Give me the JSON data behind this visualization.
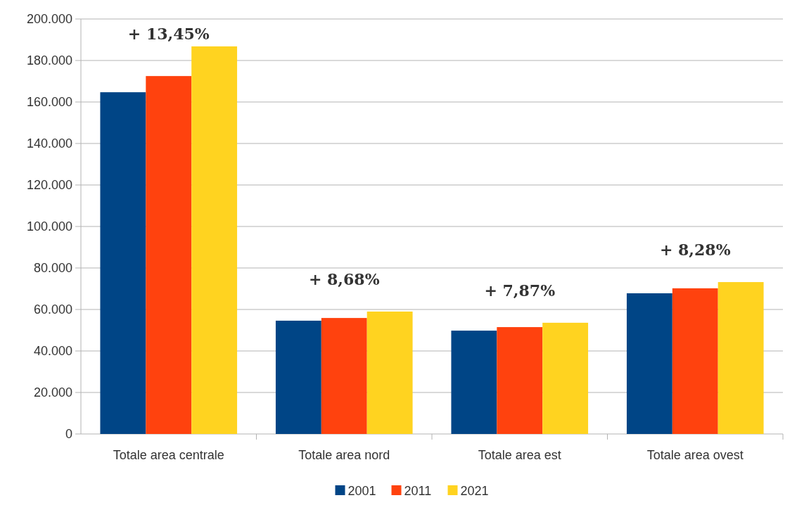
{
  "chart_data": {
    "type": "bar",
    "categories": [
      "Totale area centrale",
      "Totale area nord",
      "Totale area est",
      "Totale area ovest"
    ],
    "series": [
      {
        "name": "2001",
        "color": "#004586",
        "values": [
          164700,
          54600,
          49800,
          67800
        ]
      },
      {
        "name": "2011",
        "color": "#ff420e",
        "values": [
          172500,
          55900,
          51500,
          70200
        ]
      },
      {
        "name": "2021",
        "color": "#ffd320",
        "values": [
          186800,
          59000,
          53600,
          73200
        ]
      }
    ],
    "ylim": [
      0,
      200000
    ],
    "yticks": [
      {
        "value": 0,
        "label": "0"
      },
      {
        "value": 20000,
        "label": "20.000"
      },
      {
        "value": 40000,
        "label": "40.000"
      },
      {
        "value": 60000,
        "label": "60.000"
      },
      {
        "value": 80000,
        "label": "80.000"
      },
      {
        "value": 100000,
        "label": "100.000"
      },
      {
        "value": 120000,
        "label": "120.000"
      },
      {
        "value": 140000,
        "label": "140.000"
      },
      {
        "value": 160000,
        "label": "160.000"
      },
      {
        "value": 180000,
        "label": "180.000"
      },
      {
        "value": 200000,
        "label": "200.000"
      }
    ],
    "grid": "y",
    "legend": "bottom",
    "annotations": [
      "+ 13,45%",
      "+ 8,68%",
      "+ 7,87%",
      "+ 8,28%"
    ]
  }
}
